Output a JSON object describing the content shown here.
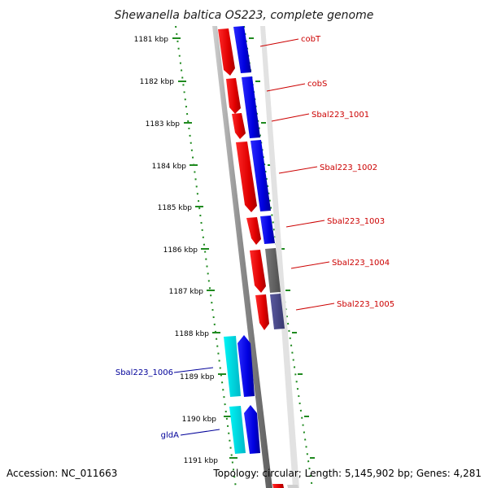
{
  "title": "Shewanella baltica OS223, complete genome",
  "accession": "Accession: NC_011663",
  "topology": "Topology: circular; Length: 5,145,902 bp; Genes: 4,281",
  "colors": {
    "background": "#ffffff",
    "ruler_dots": "#1f8a1f",
    "backbone": "#8c8c8c",
    "forward_label": "#cc0000",
    "reverse_label": "#000099"
  },
  "ruler": [
    "1181 kbp",
    "1182 kbp",
    "1183 kbp",
    "1184 kbp",
    "1185 kbp",
    "1186 kbp",
    "1187 kbp",
    "1188 kbp",
    "1189 kbp",
    "1190 kbp",
    "1191 kbp"
  ],
  "genes": [
    {
      "name": "cobT",
      "label_color": "#cc0000",
      "side": "right"
    },
    {
      "name": "cobS",
      "label_color": "#cc0000",
      "side": "right"
    },
    {
      "name": "Sbal223_1001",
      "label_color": "#cc0000",
      "side": "right"
    },
    {
      "name": "Sbal223_1002",
      "label_color": "#cc0000",
      "side": "right"
    },
    {
      "name": "Sbal223_1003",
      "label_color": "#cc0000",
      "side": "right"
    },
    {
      "name": "Sbal223_1004",
      "label_color": "#cc0000",
      "side": "right"
    },
    {
      "name": "Sbal223_1005",
      "label_color": "#cc0000",
      "side": "right"
    },
    {
      "name": "Sbal223_1006",
      "label_color": "#000099",
      "side": "left"
    },
    {
      "name": "gldA",
      "label_color": "#000099",
      "side": "left"
    }
  ],
  "tracks": {
    "protein_red": "#ff0000",
    "cog_blue": "#0000ee",
    "cog_grey": "#666666",
    "cog_slate": "#4a4a8c",
    "cyan": "#00e5e5"
  }
}
